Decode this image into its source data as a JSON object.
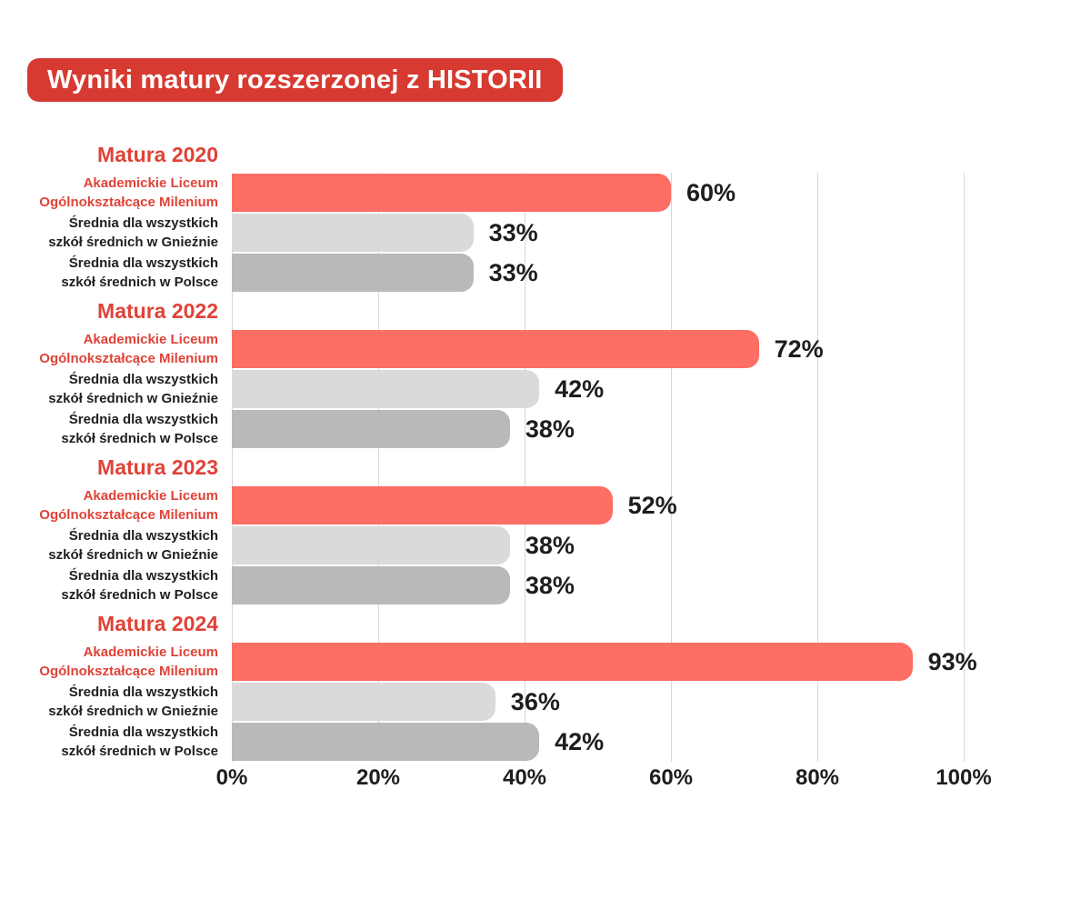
{
  "title": "Wyniki matury rozszerzonej z HISTORII",
  "colors": {
    "title_bg": "#d63a30",
    "accent_red_text": "#e04237",
    "bar_school": "#fd6e65",
    "bar_gniezno": "#dadada",
    "bar_poland": "#b9b9b9",
    "label_dark": "#1f1f1f",
    "value_text": "#1d1d1d",
    "gridline": "#d8d8d8",
    "background": "#ffffff"
  },
  "chart_data": {
    "type": "bar",
    "orientation": "horizontal",
    "title": "Wyniki matury rozszerzonej z HISTORII",
    "groups": [
      "Matura 2020",
      "Matura 2022",
      "Matura 2023",
      "Matura 2024"
    ],
    "series": [
      {
        "name": "Akademickie Liceum Ogólnokształcące Milenium",
        "label_lines": [
          "Akademickie Liceum",
          "Ogólnokształcące Milenium"
        ],
        "label_color": "#e04237",
        "color": "#fd6e65",
        "values": [
          60,
          72,
          52,
          93
        ]
      },
      {
        "name": "Średnia dla wszystkich szkół średnich w Gnieźnie",
        "label_lines": [
          "Średnia dla wszystkich",
          "szkół średnich w Gnieźnie"
        ],
        "label_color": "#1f1f1f",
        "color": "#dadada",
        "values": [
          33,
          42,
          38,
          36
        ]
      },
      {
        "name": "Średnia dla wszystkich szkół średnich w Polsce",
        "label_lines": [
          "Średnia dla wszystkich",
          "szkół średnich w Polsce"
        ],
        "label_color": "#1f1f1f",
        "color": "#b9b9b9",
        "values": [
          33,
          38,
          38,
          42
        ]
      }
    ],
    "value_suffix": "%",
    "xlim": [
      0,
      100
    ],
    "x_tick_values": [
      0,
      20,
      40,
      60,
      80,
      100
    ],
    "x_tick_labels": [
      "0%",
      "20%",
      "40%",
      "60%",
      "80%",
      "100%"
    ],
    "grid": true,
    "legend": "none",
    "group_header_color": "#e04237"
  }
}
